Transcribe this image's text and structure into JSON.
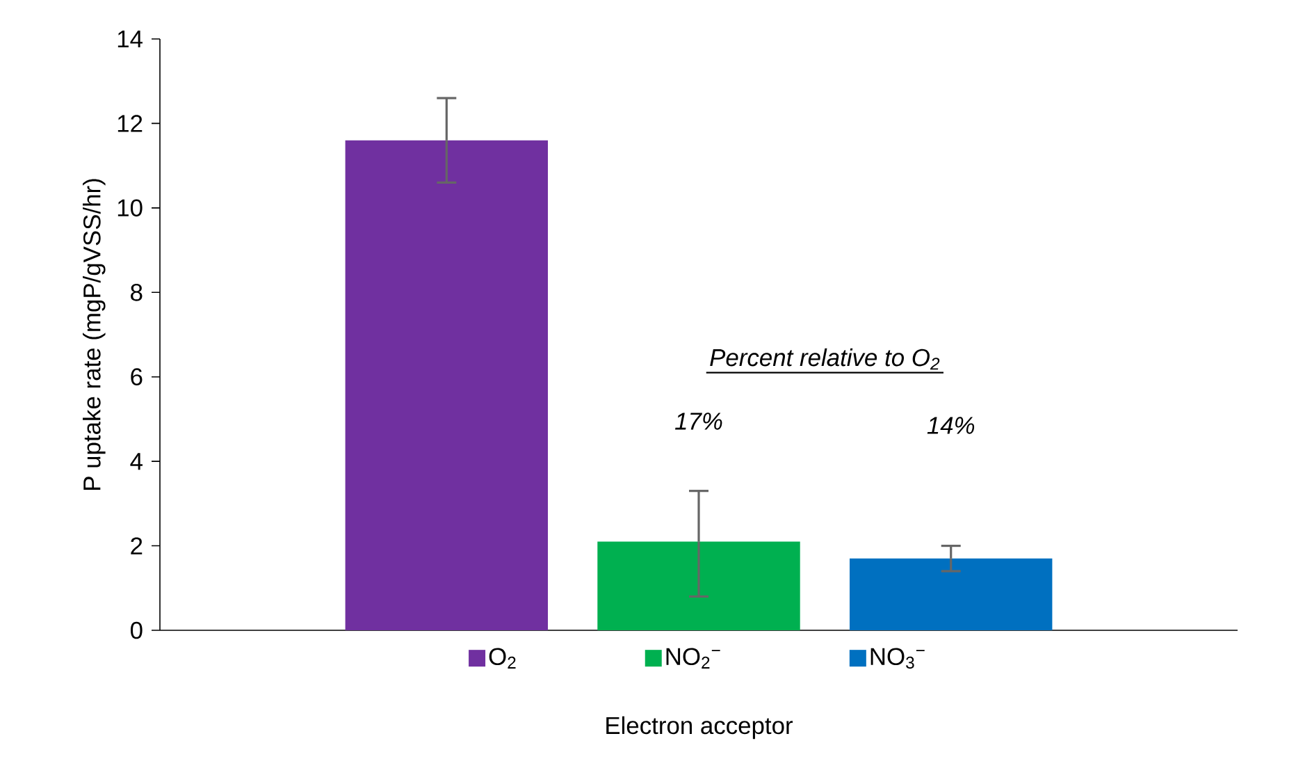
{
  "chart_data": {
    "type": "bar",
    "xlabel": "Electron acceptor",
    "ylabel": "P uptake rate (mgP/gVSS/hr)",
    "categories": [
      null
    ],
    "series": [
      {
        "name": "O$_{2}$",
        "color": "#7030a0",
        "values": [
          11.6
        ],
        "errors": [
          [
            10.6,
            12.6
          ]
        ]
      },
      {
        "name": "NO$_{2}$$^{−}$",
        "color": "#00b050",
        "values": [
          2.1
        ],
        "errors": [
          [
            0.8,
            3.3
          ]
        ]
      },
      {
        "name": "NO$_{3}$$^{−}$",
        "color": "#0070c0",
        "values": [
          1.7
        ],
        "errors": [
          [
            1.4,
            2.0
          ]
        ]
      }
    ],
    "ylim": [
      0,
      14
    ],
    "yticks": [
      0,
      2,
      4,
      6,
      8,
      10,
      12,
      14
    ],
    "annotations": [
      "Percent relative to O$_{2}$",
      "17%",
      "14%"
    ],
    "legend": "bottom",
    "tick_labels": "y",
    "grid": false
  }
}
